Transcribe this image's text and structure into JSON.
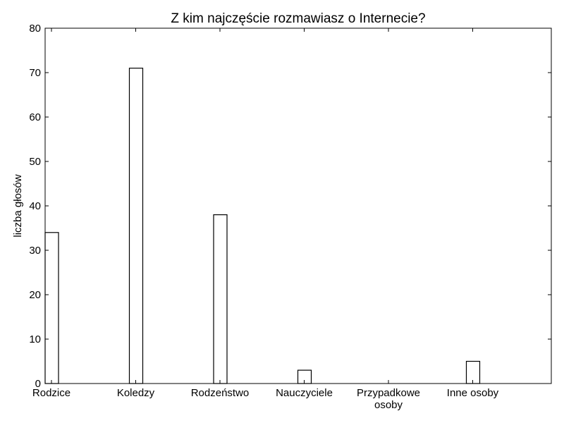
{
  "chart_data": {
    "type": "bar",
    "title": "Z kim najczęście rozmawiasz o Internecie?",
    "xlabel": "",
    "ylabel": "liczba głosów",
    "categories": [
      [
        "Rodzice"
      ],
      [
        "Koledzy"
      ],
      [
        "Rodzeństwo"
      ],
      [
        "Nauczyciele"
      ],
      [
        "Przypadkowe",
        "osoby"
      ],
      [
        "Inne osoby"
      ]
    ],
    "values": [
      34,
      71,
      38,
      3,
      0,
      5
    ],
    "ylim": [
      0,
      80
    ],
    "yticks": [
      0,
      10,
      20,
      30,
      40,
      50,
      60,
      70,
      80
    ],
    "grid": false,
    "colors": {
      "bar_fill": "#ffffff",
      "bar_edge": "#000000",
      "axes": "#000000"
    }
  }
}
